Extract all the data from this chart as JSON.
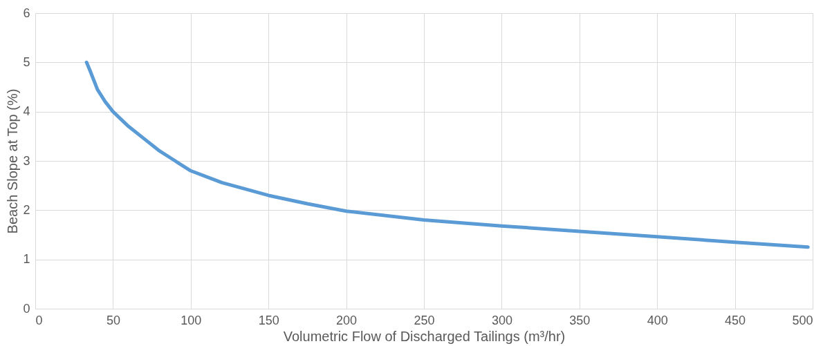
{
  "chart_data": {
    "type": "line",
    "xlabel": "Volumetric Flow of Discharged Tailings (m³/hr)",
    "ylabel": "Beach Slope at Top (%)",
    "x": [
      33,
      35,
      40,
      45,
      50,
      60,
      70,
      80,
      90,
      100,
      120,
      150,
      175,
      200,
      250,
      300,
      350,
      400,
      450,
      497
    ],
    "series": [
      {
        "color": "#5b9bd5",
        "values": [
          5.0,
          4.85,
          4.45,
          4.2,
          4.0,
          3.7,
          3.45,
          3.2,
          3.0,
          2.8,
          2.56,
          2.3,
          2.13,
          1.98,
          1.8,
          1.68,
          1.57,
          1.46,
          1.35,
          1.25
        ]
      }
    ],
    "xlim": [
      0,
      500
    ],
    "xticks": [
      0,
      50,
      100,
      150,
      200,
      250,
      300,
      350,
      400,
      450,
      500
    ],
    "ylim": [
      0,
      6
    ],
    "yticks": [
      0,
      1,
      2,
      3,
      4,
      5,
      6
    ],
    "grid": true,
    "marker": "none",
    "line_style": "solid"
  }
}
